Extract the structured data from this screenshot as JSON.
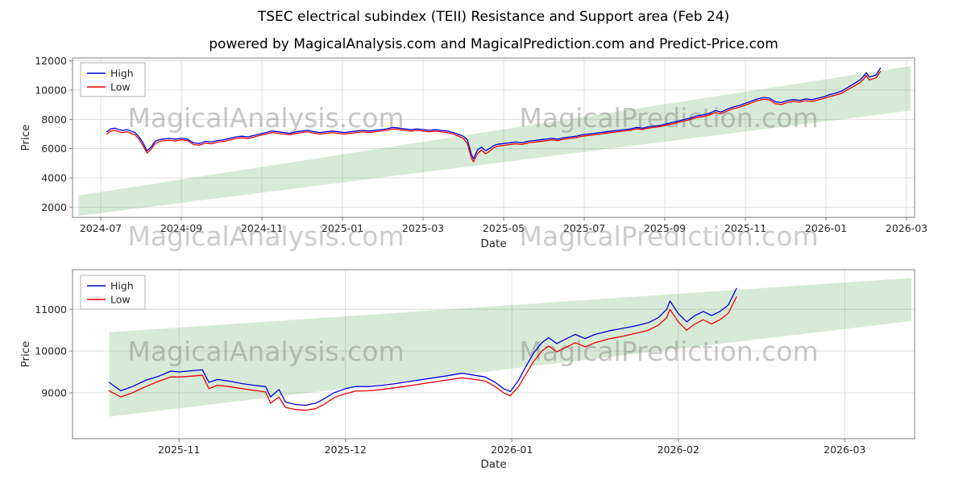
{
  "header": {
    "title": "TSEC electrical subindex (TEII) Resistance and Support area (Feb 24)",
    "subtitle": "powered by MagicalAnalysis.com and MagicalPrediction.com and Predict-Price.com"
  },
  "watermarks": {
    "left": "MagicalAnalysis.com",
    "right": "MagicalPrediction.com"
  },
  "colors": {
    "high": "#0000dd",
    "low": "#ee0000",
    "band": "rgba(34,139,34,0.18)",
    "grid": "#dcdcdc",
    "axis": "#7f7f7f",
    "text": "#262626",
    "watermark": "rgba(128,128,128,0.45)"
  },
  "chart_data": [
    {
      "type": "line",
      "title": "",
      "xlabel": "Date",
      "ylabel": "Price",
      "x_unit": "months since 2024-07",
      "grid": true,
      "legend_position": "upper left",
      "xlim": [
        -0.7,
        20.2
      ],
      "ylim": [
        1300,
        12200
      ],
      "xticks": [
        {
          "v": 0,
          "label": "2024-07"
        },
        {
          "v": 2,
          "label": "2024-09"
        },
        {
          "v": 4,
          "label": "2024-11"
        },
        {
          "v": 6,
          "label": "2025-01"
        },
        {
          "v": 8,
          "label": "2025-03"
        },
        {
          "v": 10,
          "label": "2025-05"
        },
        {
          "v": 12,
          "label": "2025-07"
        },
        {
          "v": 14,
          "label": "2025-09"
        },
        {
          "v": 16,
          "label": "2025-11"
        },
        {
          "v": 18,
          "label": "2026-01"
        },
        {
          "v": 20,
          "label": "2026-03"
        }
      ],
      "yticks": [
        2000,
        4000,
        6000,
        8000,
        10000,
        12000
      ],
      "band": [
        [
          -0.55,
          2800
        ],
        [
          20.1,
          11650
        ],
        [
          20.1,
          8600
        ],
        [
          -0.55,
          1400
        ]
      ],
      "x": [
        0.15,
        0.25,
        0.35,
        0.45,
        0.55,
        0.65,
        0.75,
        0.85,
        0.95,
        1.05,
        1.15,
        1.25,
        1.35,
        1.45,
        1.55,
        1.7,
        1.85,
        2.0,
        2.15,
        2.3,
        2.45,
        2.6,
        2.75,
        2.9,
        3.05,
        3.2,
        3.35,
        3.5,
        3.65,
        3.8,
        3.95,
        4.1,
        4.25,
        4.4,
        4.55,
        4.7,
        4.85,
        5.0,
        5.15,
        5.3,
        5.45,
        5.6,
        5.75,
        5.9,
        6.05,
        6.2,
        6.35,
        6.5,
        6.65,
        6.8,
        6.95,
        7.1,
        7.25,
        7.4,
        7.55,
        7.7,
        7.85,
        8.0,
        8.15,
        8.3,
        8.45,
        8.6,
        8.75,
        8.9,
        9.0,
        9.1,
        9.2,
        9.25,
        9.35,
        9.45,
        9.55,
        9.65,
        9.75,
        9.85,
        10.0,
        10.15,
        10.3,
        10.45,
        10.6,
        10.75,
        10.9,
        11.05,
        11.2,
        11.35,
        11.5,
        11.65,
        11.8,
        11.95,
        12.1,
        12.25,
        12.4,
        12.55,
        12.7,
        12.85,
        13.0,
        13.15,
        13.3,
        13.45,
        13.6,
        13.75,
        13.9,
        14.05,
        14.2,
        14.35,
        14.5,
        14.65,
        14.8,
        14.95,
        15.1,
        15.25,
        15.4,
        15.55,
        15.7,
        15.85,
        16.0,
        16.15,
        16.3,
        16.45,
        16.6,
        16.75,
        16.9,
        17.05,
        17.2,
        17.35,
        17.5,
        17.65,
        17.8,
        17.95,
        18.1,
        18.25,
        18.4,
        18.55,
        18.7,
        18.85,
        18.95,
        19.0,
        19.07,
        19.15,
        19.25,
        19.35
      ],
      "series": [
        {
          "name": "High",
          "values": [
            7150,
            7350,
            7400,
            7300,
            7250,
            7300,
            7200,
            7100,
            6800,
            6400,
            5850,
            6100,
            6500,
            6600,
            6650,
            6700,
            6650,
            6700,
            6650,
            6400,
            6350,
            6500,
            6450,
            6550,
            6600,
            6700,
            6800,
            6850,
            6800,
            6900,
            7000,
            7100,
            7200,
            7150,
            7100,
            7050,
            7150,
            7200,
            7250,
            7150,
            7100,
            7150,
            7200,
            7150,
            7100,
            7150,
            7200,
            7250,
            7200,
            7250,
            7300,
            7350,
            7450,
            7400,
            7350,
            7300,
            7350,
            7300,
            7250,
            7300,
            7250,
            7200,
            7100,
            6950,
            6850,
            6600,
            5600,
            5300,
            5900,
            6100,
            5850,
            6000,
            6200,
            6300,
            6350,
            6400,
            6450,
            6400,
            6500,
            6550,
            6600,
            6650,
            6700,
            6650,
            6750,
            6800,
            6850,
            6950,
            7000,
            7050,
            7100,
            7150,
            7200,
            7250,
            7300,
            7350,
            7450,
            7400,
            7500,
            7550,
            7600,
            7700,
            7800,
            7900,
            8000,
            8100,
            8250,
            8300,
            8400,
            8600,
            8500,
            8700,
            8850,
            8950,
            9100,
            9250,
            9400,
            9500,
            9450,
            9200,
            9150,
            9300,
            9350,
            9300,
            9400,
            9350,
            9450,
            9550,
            9700,
            9800,
            9950,
            10200,
            10450,
            10700,
            11000,
            11200,
            10900,
            10950,
            11050,
            11500
          ]
        },
        {
          "name": "Low",
          "values": [
            7000,
            7200,
            7250,
            7150,
            7100,
            7150,
            7050,
            6950,
            6650,
            6200,
            5700,
            5950,
            6350,
            6480,
            6530,
            6580,
            6530,
            6600,
            6550,
            6280,
            6230,
            6380,
            6330,
            6440,
            6490,
            6590,
            6690,
            6740,
            6690,
            6790,
            6900,
            7000,
            7100,
            7050,
            7000,
            6950,
            7050,
            7100,
            7150,
            7050,
            7000,
            7050,
            7100,
            7050,
            7000,
            7050,
            7100,
            7150,
            7100,
            7150,
            7200,
            7250,
            7350,
            7300,
            7250,
            7200,
            7250,
            7200,
            7150,
            7200,
            7150,
            7100,
            7000,
            6830,
            6700,
            6350,
            5350,
            5100,
            5650,
            5900,
            5650,
            5820,
            6050,
            6160,
            6220,
            6280,
            6330,
            6280,
            6390,
            6440,
            6490,
            6540,
            6600,
            6550,
            6650,
            6700,
            6750,
            6850,
            6900,
            6950,
            7000,
            7060,
            7110,
            7160,
            7210,
            7260,
            7360,
            7310,
            7410,
            7460,
            7510,
            7610,
            7700,
            7800,
            7900,
            8000,
            8140,
            8200,
            8290,
            8470,
            8380,
            8580,
            8730,
            8830,
            8980,
            9130,
            9280,
            9380,
            9330,
            9060,
            9020,
            9170,
            9230,
            9180,
            9280,
            9230,
            9330,
            9430,
            9570,
            9670,
            9800,
            10050,
            10280,
            10520,
            10800,
            11000,
            10700,
            10750,
            10850,
            11280
          ]
        }
      ]
    },
    {
      "type": "line",
      "title": "",
      "xlabel": "Date",
      "ylabel": "Price",
      "x_unit": "months since 2025-11",
      "grid": true,
      "legend_position": "upper left",
      "xlim": [
        -0.64,
        4.42
      ],
      "ylim": [
        7900,
        11950
      ],
      "xticks": [
        {
          "v": 0,
          "label": "2025-11"
        },
        {
          "v": 1,
          "label": "2025-12"
        },
        {
          "v": 2,
          "label": "2026-01"
        },
        {
          "v": 3,
          "label": "2026-02"
        },
        {
          "v": 4,
          "label": "2026-03"
        }
      ],
      "yticks": [
        9000,
        10000,
        11000
      ],
      "band": [
        [
          -0.42,
          10450
        ],
        [
          4.4,
          11750
        ],
        [
          4.4,
          10720
        ],
        [
          -0.42,
          8430
        ]
      ],
      "x": [
        -0.42,
        -0.35,
        -0.28,
        -0.2,
        -0.12,
        -0.05,
        0.0,
        0.08,
        0.14,
        0.18,
        0.23,
        0.3,
        0.38,
        0.45,
        0.52,
        0.55,
        0.6,
        0.64,
        0.7,
        0.76,
        0.82,
        0.87,
        0.93,
        1.0,
        1.06,
        1.14,
        1.22,
        1.3,
        1.4,
        1.5,
        1.6,
        1.7,
        1.76,
        1.84,
        1.9,
        1.95,
        1.99,
        2.04,
        2.08,
        2.13,
        2.18,
        2.22,
        2.27,
        2.32,
        2.38,
        2.44,
        2.5,
        2.58,
        2.66,
        2.74,
        2.82,
        2.88,
        2.93,
        2.95,
        3.0,
        3.05,
        3.1,
        3.15,
        3.2,
        3.25,
        3.3,
        3.35
      ],
      "series": [
        {
          "name": "High",
          "values": [
            9250,
            9050,
            9150,
            9300,
            9400,
            9520,
            9500,
            9530,
            9550,
            9250,
            9320,
            9280,
            9220,
            9180,
            9150,
            8900,
            9080,
            8780,
            8720,
            8700,
            8750,
            8850,
            9000,
            9100,
            9150,
            9150,
            9180,
            9220,
            9280,
            9340,
            9400,
            9470,
            9430,
            9380,
            9250,
            9100,
            9030,
            9300,
            9600,
            9950,
            10200,
            10320,
            10180,
            10280,
            10400,
            10300,
            10400,
            10480,
            10540,
            10600,
            10680,
            10800,
            11000,
            11200,
            10900,
            10700,
            10850,
            10950,
            10850,
            10950,
            11100,
            11500
          ]
        },
        {
          "name": "Low",
          "values": [
            9050,
            8900,
            9000,
            9150,
            9280,
            9380,
            9380,
            9400,
            9420,
            9100,
            9180,
            9150,
            9100,
            9060,
            9020,
            8750,
            8900,
            8650,
            8600,
            8580,
            8620,
            8720,
            8880,
            8980,
            9040,
            9050,
            9080,
            9120,
            9180,
            9240,
            9300,
            9360,
            9330,
            9280,
            9150,
            9000,
            8930,
            9150,
            9420,
            9750,
            10000,
            10120,
            9980,
            10080,
            10200,
            10100,
            10200,
            10290,
            10350,
            10420,
            10500,
            10620,
            10800,
            11000,
            10700,
            10500,
            10650,
            10750,
            10650,
            10750,
            10900,
            11300
          ]
        }
      ]
    }
  ]
}
